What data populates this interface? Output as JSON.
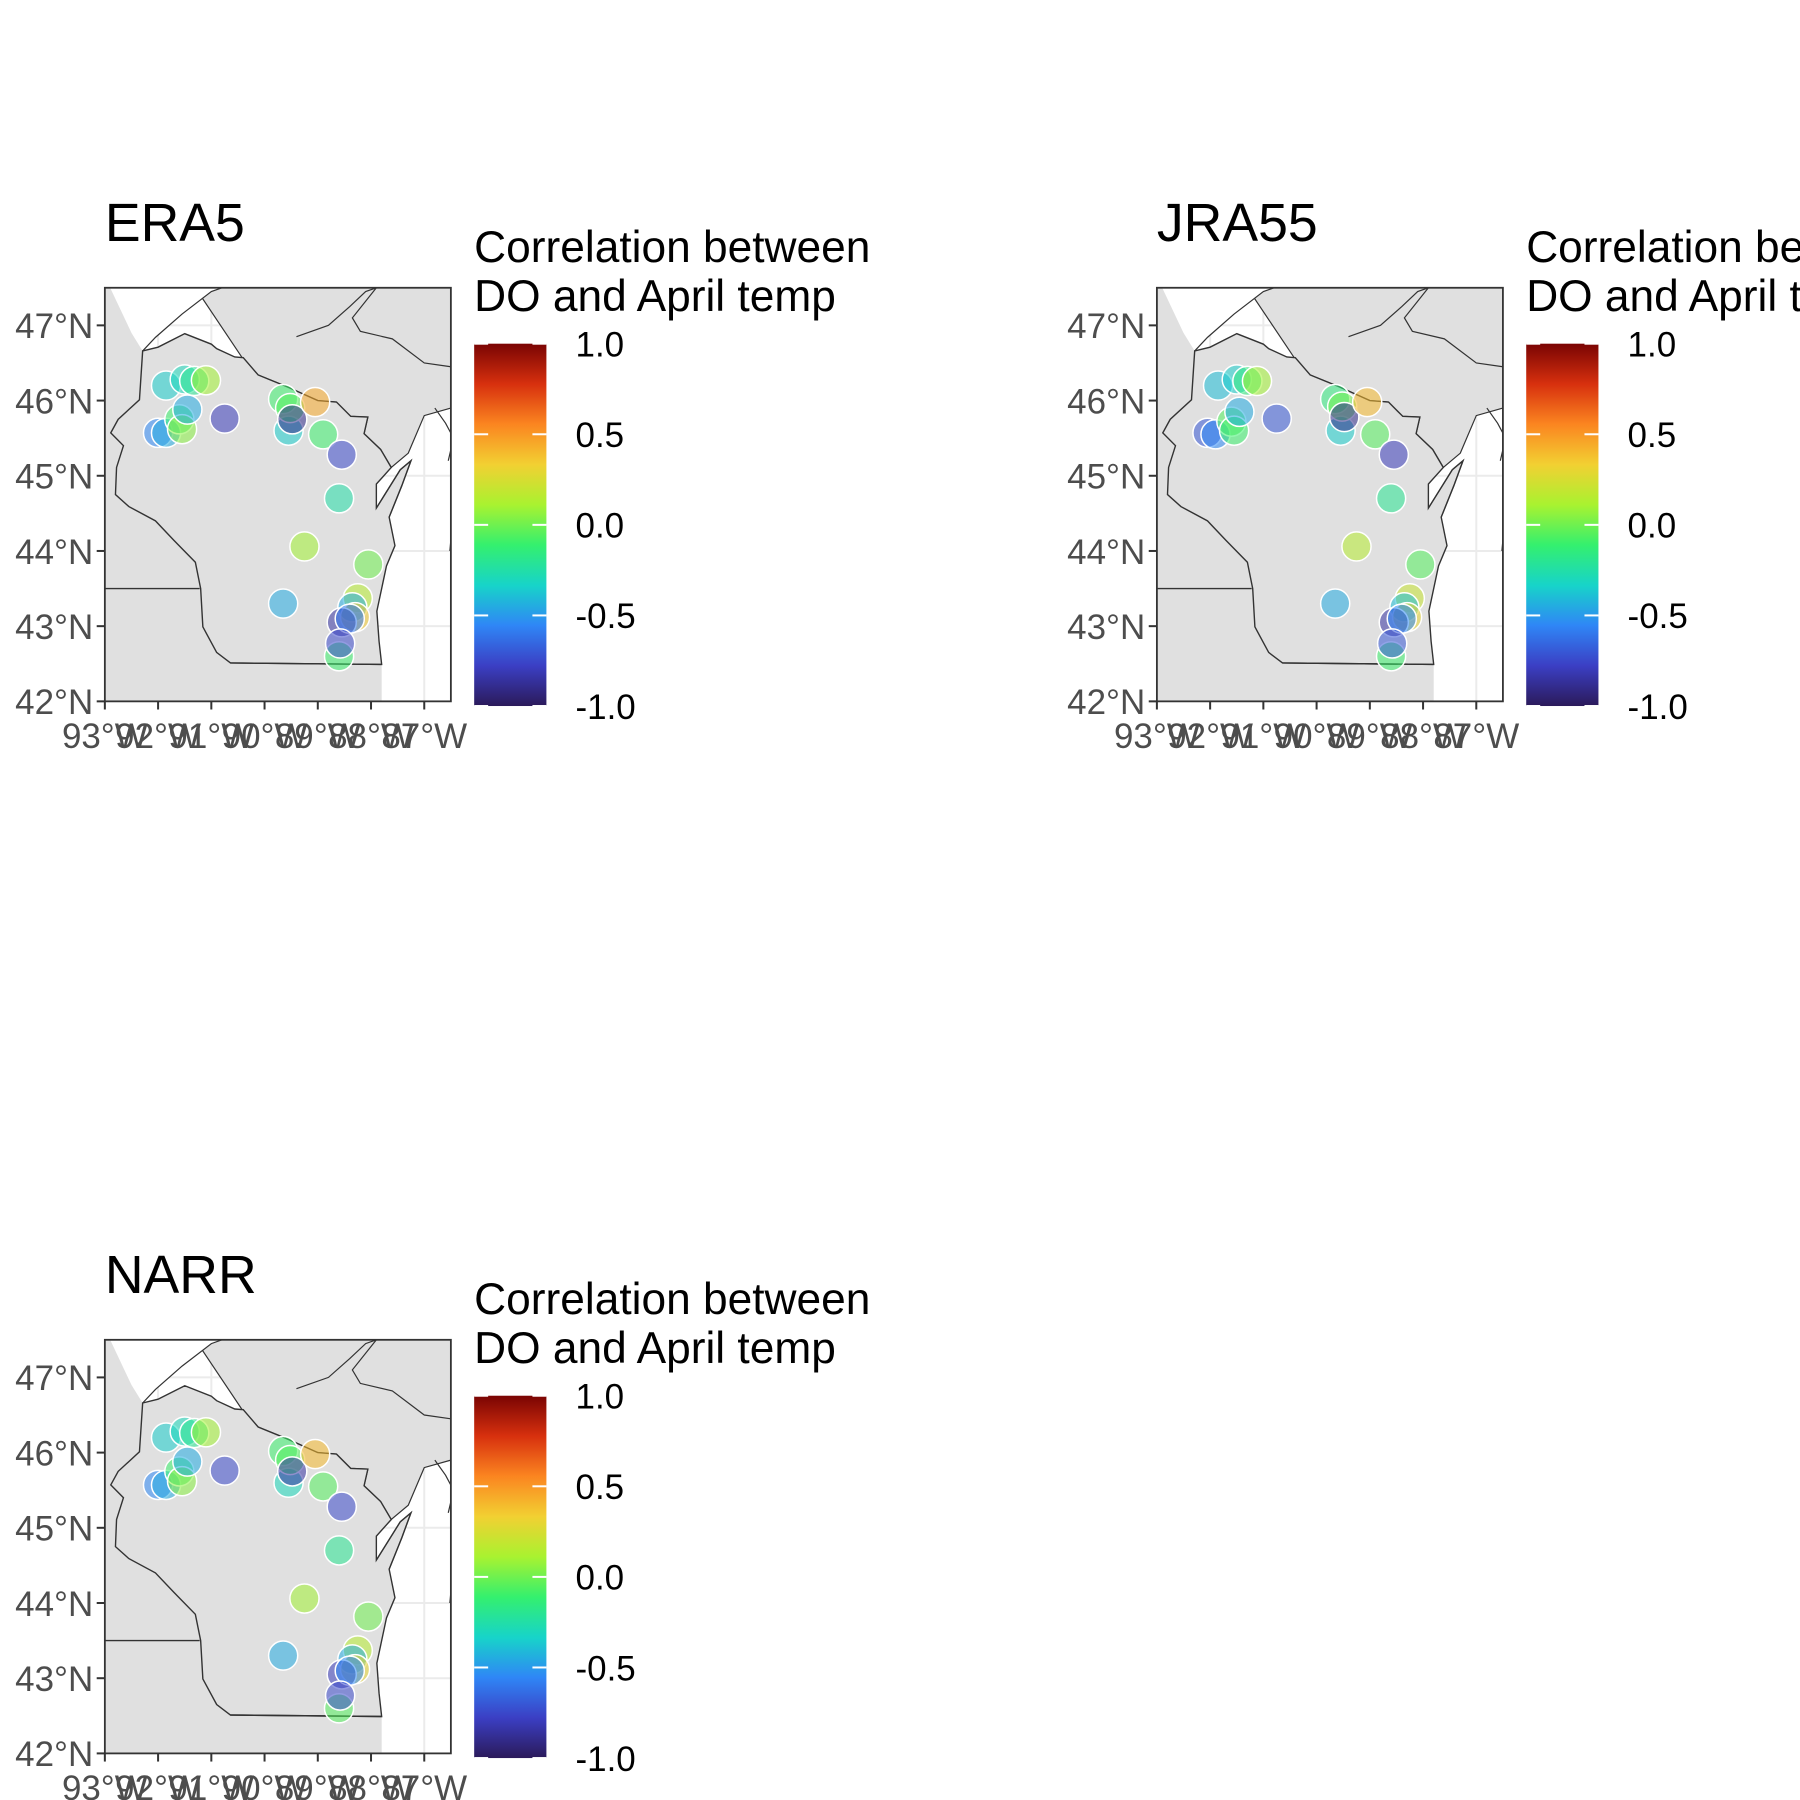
{
  "legend": {
    "title_line1": "Correlation between",
    "title_line2": "DO and April temp",
    "ticks": [
      "1.0",
      "0.5",
      "0.0",
      "-0.5",
      "-1.0"
    ],
    "range": [
      -1,
      1
    ],
    "colors": [
      "#2b1a5a",
      "#3b3fc4",
      "#2f86f6",
      "#17d4c9",
      "#34f06e",
      "#a9f230",
      "#f2d032",
      "#fb8520",
      "#d7300e",
      "#7a0403"
    ]
  },
  "axes": {
    "y_ticks": [
      "47°N",
      "46°N",
      "45°N",
      "44°N",
      "43°N",
      "42°N"
    ],
    "x_ticks": [
      "93°W",
      "92°W",
      "91°W",
      "90°W",
      "89°W",
      "88°W",
      "87°W"
    ]
  },
  "map_colors": {
    "land": "#e0e0e0",
    "border": "#333333",
    "grid": "#ffffff"
  },
  "chart_data": [
    {
      "type": "scatter",
      "title": "ERA5",
      "xlim": [
        -93,
        -86.5
      ],
      "ylim": [
        42,
        47.5
      ],
      "points": [
        {
          "lon": -92.0,
          "lat": 45.57,
          "r": -0.55
        },
        {
          "lon": -91.85,
          "lat": 45.57,
          "r": -0.45
        },
        {
          "lon": -91.85,
          "lat": 46.2,
          "r": -0.35
        },
        {
          "lon": -91.6,
          "lat": 45.75,
          "r": -0.1
        },
        {
          "lon": -91.55,
          "lat": 45.62,
          "r": 0.05
        },
        {
          "lon": -91.45,
          "lat": 45.88,
          "r": -0.45
        },
        {
          "lon": -91.5,
          "lat": 46.28,
          "r": -0.3
        },
        {
          "lon": -91.32,
          "lat": 46.26,
          "r": -0.2
        },
        {
          "lon": -91.1,
          "lat": 46.27,
          "r": 0.1
        },
        {
          "lon": -90.75,
          "lat": 45.76,
          "r": -0.8
        },
        {
          "lon": -89.65,
          "lat": 46.02,
          "r": -0.1
        },
        {
          "lon": -89.55,
          "lat": 45.6,
          "r": -0.35
        },
        {
          "lon": -89.52,
          "lat": 45.9,
          "r": -0.05
        },
        {
          "lon": -89.48,
          "lat": 45.75,
          "r": -0.9
        },
        {
          "lon": -89.05,
          "lat": 45.98,
          "r": 0.45
        },
        {
          "lon": -88.9,
          "lat": 45.55,
          "r": -0.1
        },
        {
          "lon": -88.55,
          "lat": 45.28,
          "r": -0.75
        },
        {
          "lon": -88.6,
          "lat": 44.7,
          "r": -0.25
        },
        {
          "lon": -89.25,
          "lat": 44.06,
          "r": 0.1
        },
        {
          "lon": -88.05,
          "lat": 43.82,
          "r": 0.0
        },
        {
          "lon": -89.65,
          "lat": 43.3,
          "r": -0.45
        },
        {
          "lon": -88.25,
          "lat": 43.37,
          "r": 0.15
        },
        {
          "lon": -88.35,
          "lat": 43.25,
          "r": -0.45
        },
        {
          "lon": -88.3,
          "lat": 43.12,
          "r": 0.35
        },
        {
          "lon": -88.55,
          "lat": 43.05,
          "r": -0.85
        },
        {
          "lon": -88.4,
          "lat": 43.1,
          "r": -0.6
        },
        {
          "lon": -88.6,
          "lat": 42.6,
          "r": -0.1
        },
        {
          "lon": -88.58,
          "lat": 42.77,
          "r": -0.75
        }
      ]
    },
    {
      "type": "scatter",
      "title": "JRA55",
      "xlim": [
        -93,
        -86.5
      ],
      "ylim": [
        42,
        47.5
      ],
      "points": [
        {
          "lon": -92.05,
          "lat": 45.57,
          "r": -0.7
        },
        {
          "lon": -91.9,
          "lat": 45.55,
          "r": -0.55
        },
        {
          "lon": -91.85,
          "lat": 46.2,
          "r": -0.4
        },
        {
          "lon": -91.6,
          "lat": 45.72,
          "r": -0.05
        },
        {
          "lon": -91.55,
          "lat": 45.6,
          "r": -0.1
        },
        {
          "lon": -91.45,
          "lat": 45.85,
          "r": -0.45
        },
        {
          "lon": -91.5,
          "lat": 46.28,
          "r": -0.35
        },
        {
          "lon": -91.3,
          "lat": 46.26,
          "r": -0.15
        },
        {
          "lon": -91.12,
          "lat": 46.26,
          "r": 0.1
        },
        {
          "lon": -90.75,
          "lat": 45.76,
          "r": -0.7
        },
        {
          "lon": -89.65,
          "lat": 46.02,
          "r": -0.15
        },
        {
          "lon": -89.55,
          "lat": 45.6,
          "r": -0.35
        },
        {
          "lon": -89.52,
          "lat": 45.92,
          "r": 0.0
        },
        {
          "lon": -89.48,
          "lat": 45.78,
          "r": -0.9
        },
        {
          "lon": -89.05,
          "lat": 45.98,
          "r": 0.4
        },
        {
          "lon": -88.9,
          "lat": 45.55,
          "r": -0.05
        },
        {
          "lon": -88.55,
          "lat": 45.28,
          "r": -0.8
        },
        {
          "lon": -88.6,
          "lat": 44.7,
          "r": -0.2
        },
        {
          "lon": -89.25,
          "lat": 44.06,
          "r": 0.15
        },
        {
          "lon": -88.05,
          "lat": 43.82,
          "r": -0.05
        },
        {
          "lon": -89.65,
          "lat": 43.3,
          "r": -0.45
        },
        {
          "lon": -88.25,
          "lat": 43.37,
          "r": 0.2
        },
        {
          "lon": -88.35,
          "lat": 43.25,
          "r": -0.4
        },
        {
          "lon": -88.3,
          "lat": 43.12,
          "r": 0.3
        },
        {
          "lon": -88.55,
          "lat": 43.05,
          "r": -0.85
        },
        {
          "lon": -88.4,
          "lat": 43.1,
          "r": -0.55
        },
        {
          "lon": -88.6,
          "lat": 42.6,
          "r": -0.1
        },
        {
          "lon": -88.58,
          "lat": 42.77,
          "r": -0.7
        }
      ]
    },
    {
      "type": "scatter",
      "title": "NARR",
      "xlim": [
        -93,
        -86.5
      ],
      "ylim": [
        42,
        47.5
      ],
      "points": [
        {
          "lon": -92.0,
          "lat": 45.57,
          "r": -0.55
        },
        {
          "lon": -91.85,
          "lat": 45.57,
          "r": -0.45
        },
        {
          "lon": -91.85,
          "lat": 46.2,
          "r": -0.35
        },
        {
          "lon": -91.6,
          "lat": 45.75,
          "r": -0.1
        },
        {
          "lon": -91.55,
          "lat": 45.62,
          "r": 0.05
        },
        {
          "lon": -91.45,
          "lat": 45.88,
          "r": -0.45
        },
        {
          "lon": -91.5,
          "lat": 46.28,
          "r": -0.3
        },
        {
          "lon": -91.32,
          "lat": 46.26,
          "r": -0.2
        },
        {
          "lon": -91.1,
          "lat": 46.27,
          "r": 0.1
        },
        {
          "lon": -90.75,
          "lat": 45.76,
          "r": -0.75
        },
        {
          "lon": -89.65,
          "lat": 46.02,
          "r": -0.1
        },
        {
          "lon": -89.55,
          "lat": 45.6,
          "r": -0.3
        },
        {
          "lon": -89.52,
          "lat": 45.9,
          "r": -0.05
        },
        {
          "lon": -89.48,
          "lat": 45.75,
          "r": -0.85
        },
        {
          "lon": -89.05,
          "lat": 45.98,
          "r": 0.4
        },
        {
          "lon": -88.9,
          "lat": 45.55,
          "r": -0.05
        },
        {
          "lon": -88.55,
          "lat": 45.28,
          "r": -0.75
        },
        {
          "lon": -88.6,
          "lat": 44.7,
          "r": -0.2
        },
        {
          "lon": -89.25,
          "lat": 44.06,
          "r": 0.1
        },
        {
          "lon": -88.05,
          "lat": 43.82,
          "r": 0.0
        },
        {
          "lon": -89.65,
          "lat": 43.3,
          "r": -0.45
        },
        {
          "lon": -88.25,
          "lat": 43.37,
          "r": 0.15
        },
        {
          "lon": -88.35,
          "lat": 43.25,
          "r": -0.45
        },
        {
          "lon": -88.3,
          "lat": 43.12,
          "r": 0.3
        },
        {
          "lon": -88.55,
          "lat": 43.05,
          "r": -0.8
        },
        {
          "lon": -88.4,
          "lat": 43.1,
          "r": -0.55
        },
        {
          "lon": -88.6,
          "lat": 42.6,
          "r": -0.05
        },
        {
          "lon": -88.58,
          "lat": 42.77,
          "r": -0.75
        }
      ]
    }
  ]
}
